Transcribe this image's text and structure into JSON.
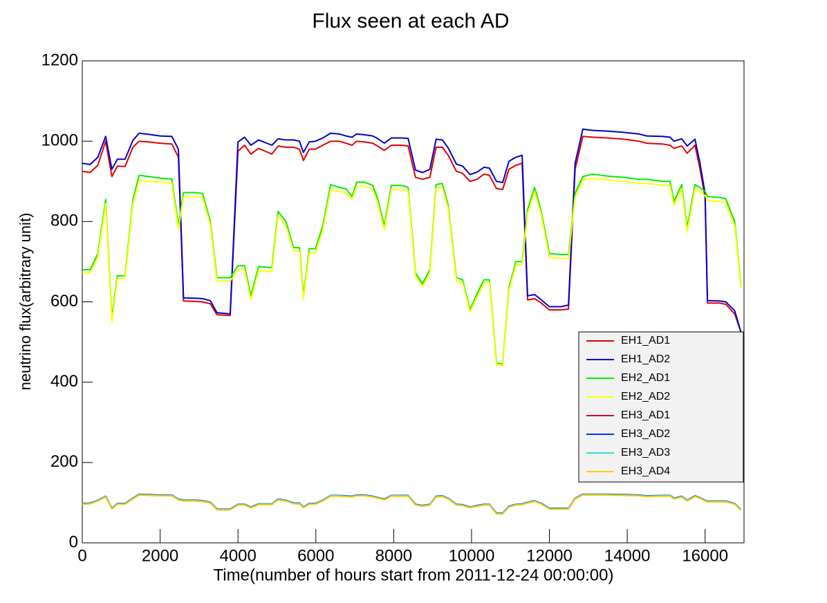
{
  "chart_data": {
    "type": "line",
    "title": "Flux seen at each AD",
    "x_label": "Time(number of hours start from 2011-12-24 00:00:00)",
    "y_label": "neutrino flux(arbitrary unit)",
    "xlim": [
      0,
      17000
    ],
    "ylim": [
      0,
      1200
    ],
    "xticks": [
      0,
      2000,
      4000,
      6000,
      8000,
      10000,
      12000,
      14000,
      16000
    ],
    "yticks": [
      0,
      200,
      400,
      600,
      800,
      1000,
      1200
    ],
    "legend": "right",
    "x": [
      0,
      200,
      400,
      600,
      760,
      900,
      1100,
      1300,
      1460,
      1700,
      2000,
      2300,
      2470,
      2600,
      2900,
      3090,
      3290,
      3460,
      3800,
      4000,
      4170,
      4330,
      4530,
      4870,
      5030,
      5230,
      5430,
      5580,
      5680,
      5830,
      5990,
      6180,
      6380,
      6600,
      6770,
      6930,
      7050,
      7250,
      7460,
      7580,
      7760,
      7940,
      8200,
      8370,
      8560,
      8740,
      8930,
      9090,
      9250,
      9400,
      9610,
      9770,
      9960,
      10140,
      10320,
      10460,
      10640,
      10800,
      10960,
      11140,
      11300,
      11440,
      11620,
      11780,
      12000,
      12300,
      12490,
      12660,
      12860,
      13100,
      13500,
      13900,
      14300,
      14500,
      14900,
      15100,
      15200,
      15400,
      15540,
      15740,
      15860,
      16000,
      16060,
      16360,
      16530,
      16760,
      16920
    ],
    "series": [
      {
        "name": "EH1_AD1",
        "color": "#e00000",
        "values": [
          925,
          922,
          940,
          1000,
          912,
          938,
          937,
          985,
          1000,
          998,
          995,
          993,
          960,
          602,
          601,
          600,
          595,
          568,
          566,
          975,
          990,
          968,
          982,
          968,
          988,
          985,
          985,
          980,
          952,
          980,
          980,
          990,
          1000,
          1000,
          995,
          990,
          1000,
          998,
          995,
          988,
          977,
          990,
          990,
          988,
          910,
          905,
          910,
          985,
          985,
          965,
          925,
          920,
          900,
          905,
          918,
          915,
          882,
          880,
          930,
          940,
          945,
          605,
          608,
          598,
          580,
          580,
          582,
          930,
          1012,
          1010,
          1008,
          1005,
          1000,
          995,
          993,
          990,
          982,
          988,
          970,
          990,
          935,
          860,
          597,
          597,
          594,
          570,
          525
        ]
      },
      {
        "name": "EH1_AD2",
        "color": "#0000cc",
        "values": [
          945,
          942,
          960,
          1012,
          930,
          955,
          955,
          1002,
          1020,
          1017,
          1013,
          1012,
          980,
          610,
          609,
          608,
          603,
          573,
          570,
          998,
          1010,
          990,
          1003,
          990,
          1006,
          1003,
          1003,
          1000,
          972,
          998,
          1000,
          1008,
          1020,
          1018,
          1013,
          1010,
          1018,
          1016,
          1013,
          1007,
          995,
          1008,
          1008,
          1007,
          928,
          922,
          930,
          1005,
          1003,
          983,
          943,
          938,
          917,
          923,
          935,
          933,
          900,
          897,
          950,
          960,
          965,
          615,
          618,
          606,
          588,
          588,
          592,
          945,
          1030,
          1027,
          1025,
          1022,
          1018,
          1013,
          1012,
          1010,
          1000,
          1006,
          988,
          1005,
          950,
          870,
          603,
          602,
          600,
          578,
          525
        ]
      },
      {
        "name": "EH2_AD1",
        "color": "#00ee00",
        "values": [
          680,
          680,
          720,
          855,
          560,
          665,
          665,
          855,
          915,
          912,
          908,
          906,
          790,
          872,
          872,
          870,
          800,
          660,
          660,
          690,
          690,
          615,
          688,
          685,
          825,
          800,
          735,
          735,
          615,
          732,
          732,
          790,
          892,
          885,
          882,
          862,
          898,
          898,
          890,
          860,
          790,
          890,
          890,
          885,
          672,
          645,
          680,
          892,
          895,
          840,
          660,
          655,
          580,
          620,
          655,
          655,
          448,
          445,
          635,
          700,
          700,
          830,
          885,
          830,
          720,
          718,
          718,
          870,
          912,
          918,
          913,
          910,
          905,
          905,
          900,
          900,
          850,
          892,
          785,
          892,
          885,
          875,
          862,
          860,
          857,
          800,
          640
        ]
      },
      {
        "name": "EH2_AD2",
        "color": "#ffff00",
        "values": [
          672,
          672,
          712,
          845,
          550,
          658,
          658,
          845,
          903,
          900,
          898,
          896,
          780,
          862,
          862,
          860,
          792,
          652,
          652,
          680,
          680,
          605,
          678,
          675,
          815,
          790,
          727,
          727,
          607,
          722,
          722,
          780,
          880,
          875,
          872,
          855,
          888,
          888,
          880,
          850,
          780,
          880,
          880,
          876,
          665,
          638,
          672,
          882,
          885,
          832,
          652,
          648,
          575,
          612,
          648,
          648,
          442,
          440,
          628,
          692,
          692,
          820,
          875,
          822,
          710,
          708,
          708,
          860,
          903,
          908,
          903,
          900,
          895,
          895,
          890,
          890,
          840,
          882,
          775,
          882,
          875,
          865,
          852,
          850,
          847,
          790,
          635
        ]
      },
      {
        "name": "EH3_AD1",
        "color": "#cc0033",
        "values": [
          97,
          98,
          105,
          115,
          85,
          97,
          97,
          110,
          120,
          119,
          118,
          118,
          108,
          105,
          105,
          104,
          100,
          83,
          83,
          95,
          95,
          88,
          96,
          96,
          108,
          105,
          98,
          98,
          88,
          97,
          97,
          105,
          117,
          117,
          116,
          115,
          118,
          118,
          115,
          112,
          108,
          117,
          117,
          117,
          95,
          92,
          95,
          115,
          116,
          110,
          95,
          94,
          88,
          92,
          95,
          95,
          73,
          73,
          90,
          95,
          96,
          100,
          104,
          98,
          85,
          85,
          85,
          110,
          120,
          120,
          120,
          119,
          118,
          116,
          117,
          117,
          110,
          115,
          105,
          116,
          112,
          105,
          103,
          103,
          103,
          97,
          82
        ]
      },
      {
        "name": "EH3_AD2",
        "color": "#0033ee",
        "values": [
          98,
          99,
          106,
          116,
          86,
          98,
          98,
          111,
          121,
          120,
          119,
          119,
          109,
          106,
          106,
          105,
          101,
          84,
          84,
          96,
          96,
          89,
          97,
          97,
          109,
          106,
          99,
          99,
          89,
          98,
          98,
          106,
          118,
          118,
          117,
          116,
          119,
          119,
          116,
          113,
          109,
          118,
          118,
          118,
          96,
          93,
          96,
          116,
          117,
          111,
          96,
          95,
          89,
          93,
          96,
          96,
          74,
          74,
          91,
          96,
          97,
          101,
          105,
          99,
          86,
          86,
          86,
          111,
          121,
          121,
          121,
          120,
          119,
          117,
          118,
          118,
          111,
          116,
          106,
          117,
          113,
          106,
          104,
          104,
          104,
          98,
          83
        ]
      },
      {
        "name": "EH3_AD3",
        "color": "#33ddcc",
        "values": [
          97,
          98,
          105,
          115,
          85,
          97,
          97,
          110,
          120,
          119,
          118,
          118,
          108,
          105,
          105,
          104,
          100,
          83,
          83,
          95,
          95,
          88,
          96,
          96,
          108,
          105,
          98,
          98,
          88,
          97,
          97,
          105,
          117,
          117,
          116,
          115,
          118,
          118,
          115,
          112,
          108,
          117,
          117,
          117,
          95,
          92,
          95,
          115,
          116,
          110,
          95,
          94,
          88,
          92,
          95,
          95,
          73,
          73,
          90,
          95,
          96,
          100,
          104,
          98,
          85,
          85,
          85,
          110,
          120,
          120,
          120,
          119,
          118,
          116,
          117,
          117,
          110,
          115,
          105,
          116,
          112,
          105,
          103,
          103,
          103,
          97,
          82
        ]
      },
      {
        "name": "EH3_AD4",
        "color": "#ffcc00",
        "values": [
          96,
          97,
          104,
          114,
          84,
          96,
          96,
          109,
          119,
          118,
          117,
          117,
          107,
          104,
          104,
          103,
          99,
          82,
          82,
          94,
          94,
          87,
          95,
          95,
          107,
          104,
          97,
          97,
          87,
          96,
          96,
          104,
          116,
          116,
          115,
          114,
          117,
          117,
          114,
          111,
          107,
          116,
          116,
          116,
          94,
          91,
          94,
          114,
          115,
          109,
          94,
          93,
          87,
          91,
          94,
          94,
          72,
          72,
          89,
          94,
          95,
          99,
          103,
          97,
          84,
          84,
          84,
          109,
          119,
          119,
          119,
          118,
          117,
          115,
          116,
          116,
          109,
          114,
          104,
          115,
          111,
          104,
          102,
          102,
          102,
          96,
          81
        ]
      }
    ]
  }
}
